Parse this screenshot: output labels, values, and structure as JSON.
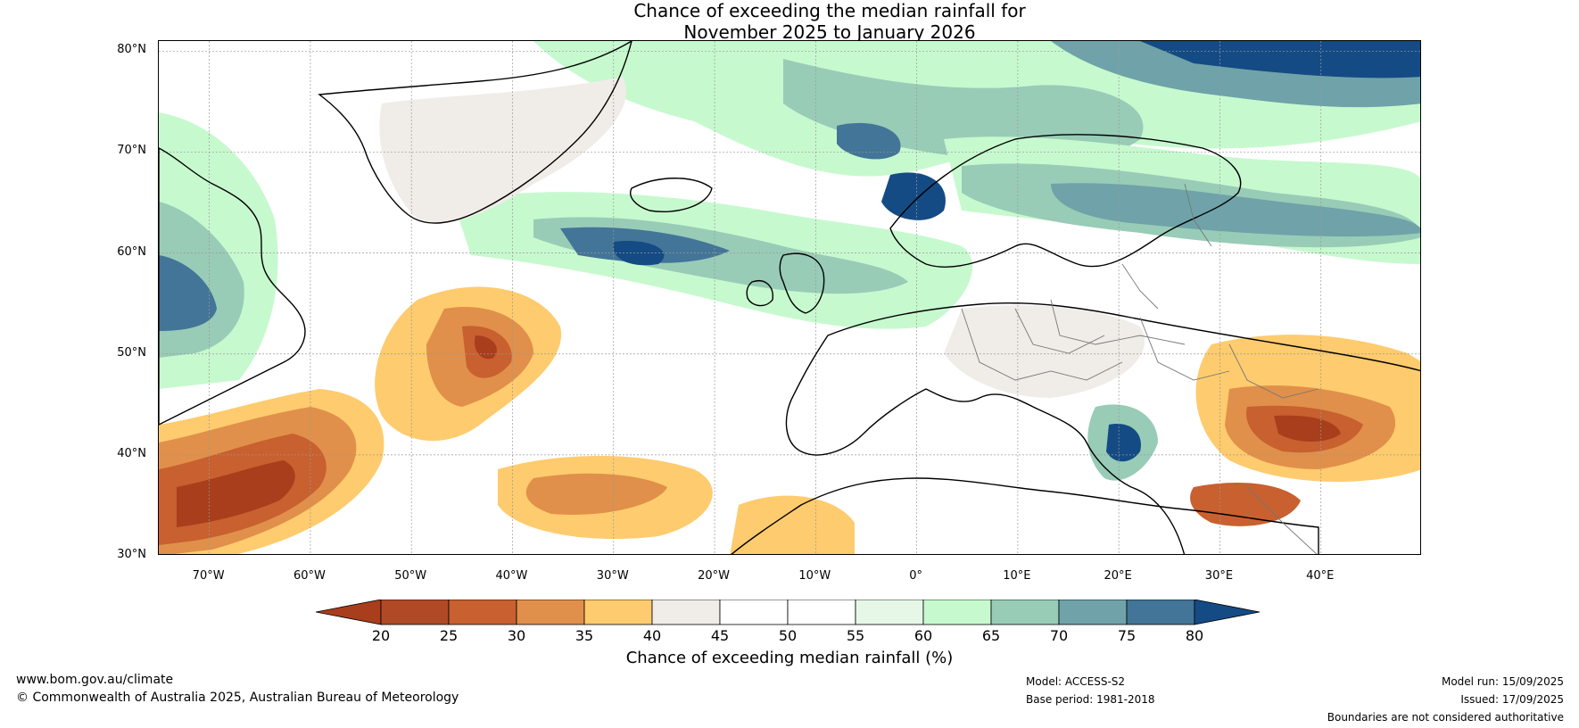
{
  "title": {
    "line1": "Chance of exceeding the median rainfall for",
    "line2": "November 2025 to January 2026"
  },
  "latitude_labels": [
    "80°N",
    "70°N",
    "60°N",
    "50°N",
    "40°N",
    "30°N"
  ],
  "longitude_labels": [
    "70°W",
    "60°W",
    "50°W",
    "40°W",
    "30°W",
    "20°W",
    "10°W",
    "0°",
    "10°E",
    "20°E",
    "30°E",
    "40°E"
  ],
  "map_extent": {
    "lon_min": -75,
    "lon_max": 50,
    "lat_min": 30,
    "lat_max": 81
  },
  "colorbar": {
    "ticks": [
      "20",
      "25",
      "30",
      "35",
      "40",
      "45",
      "50",
      "55",
      "60",
      "65",
      "70",
      "75",
      "80"
    ],
    "colors": [
      "#a83e1c",
      "#b04a26",
      "#c8602f",
      "#e0904a",
      "#fecb6e",
      "#f0ece8",
      "#ffffff",
      "#ffffff",
      "#e7f7e7",
      "#c7f9cf",
      "#98ccb7",
      "#6fa3a9",
      "#427597",
      "#144b84"
    ],
    "title": "Chance of exceeding median rainfall (%)"
  },
  "footer": {
    "website": "www.bom.gov.au/climate",
    "copyright": "© Commonwealth of Australia 2025, Australian Bureau of Meteorology",
    "model": "Model: ACCESS-S2",
    "base_period": "Base period: 1981-2018",
    "model_run": "Model run: 15/09/2025",
    "issued": "Issued: 17/09/2025",
    "disclaimer": "Boundaries are not considered authoritative"
  }
}
